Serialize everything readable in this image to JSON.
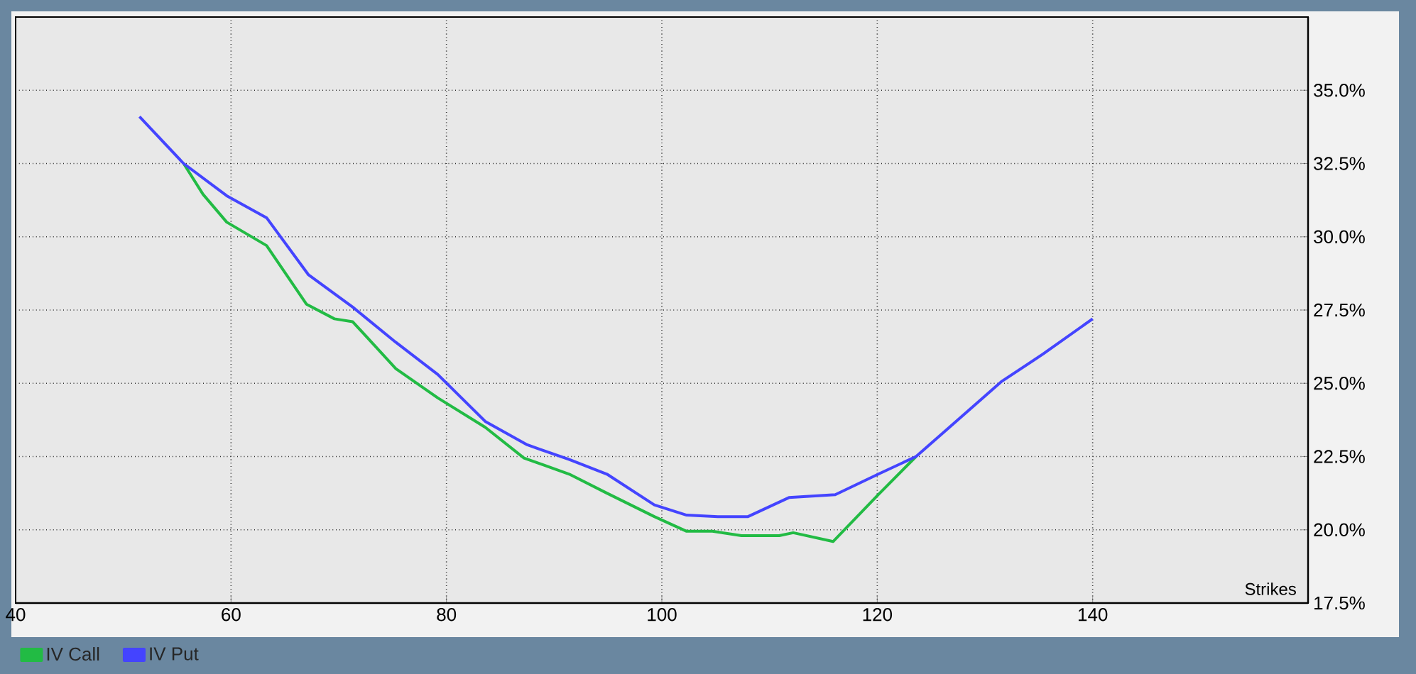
{
  "chart_data": {
    "type": "line",
    "xlabel": "Strikes",
    "xlim": [
      40,
      160
    ],
    "xticks": [
      40,
      60,
      80,
      100,
      120,
      140
    ],
    "ylim": [
      17.5,
      37.5
    ],
    "yticks": [
      {
        "value": 17.5,
        "label": "17.5%"
      },
      {
        "value": 20,
        "label": "20.0%"
      },
      {
        "value": 22.5,
        "label": "22.5%"
      },
      {
        "value": 25,
        "label": "25.0%"
      },
      {
        "value": 27.5,
        "label": "27.5%"
      },
      {
        "value": 30,
        "label": "30.0%"
      },
      {
        "value": 32.5,
        "label": "32.5%"
      },
      {
        "value": 35,
        "label": "35.0%"
      }
    ],
    "grid": true,
    "legend": "bottom left",
    "marker": "none",
    "line_style": "solid",
    "series": [
      {
        "name": "IV Call",
        "color": "#22bb44",
        "x": [
          55.6,
          57.4,
          59.6,
          63.3,
          67,
          69.6,
          71.3,
          75.3,
          79.2,
          83.6,
          87.2,
          91.4,
          94.9,
          99.3,
          102.3,
          104.7,
          107.4,
          110.9,
          112.2,
          115.9,
          120.1,
          123.6
        ],
        "values": [
          32.5,
          31.45,
          30.5,
          29.7,
          27.7,
          27.2,
          27.1,
          25.5,
          24.5,
          23.5,
          22.45,
          21.9,
          21.25,
          20.45,
          19.95,
          19.95,
          19.8,
          19.8,
          19.9,
          19.6,
          21.2,
          22.5
        ]
      },
      {
        "name": "IV Put",
        "color": "#4444ff",
        "x": [
          51.5,
          55.6,
          59.6,
          63.3,
          67.2,
          71.3,
          75.3,
          79.2,
          83.6,
          87.5,
          91.4,
          94.9,
          99.3,
          102.3,
          105.2,
          108,
          111.8,
          116.1,
          120.1,
          123.6,
          126.7,
          131.5,
          135.4,
          140
        ],
        "values": [
          34.1,
          32.5,
          31.4,
          30.65,
          28.7,
          27.6,
          26.4,
          25.3,
          23.7,
          22.9,
          22.4,
          21.9,
          20.85,
          20.5,
          20.45,
          20.45,
          21.1,
          21.2,
          21.9,
          22.5,
          23.5,
          25.05,
          26,
          27.2
        ]
      }
    ]
  }
}
